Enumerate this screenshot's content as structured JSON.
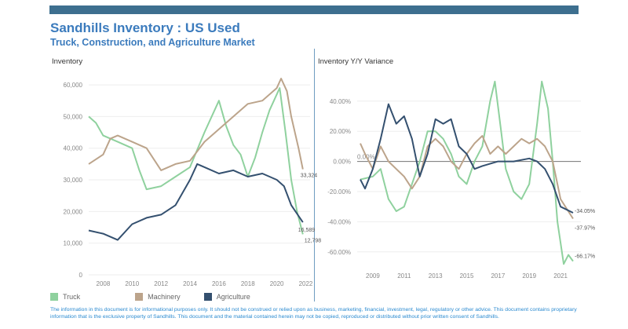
{
  "header": {
    "title": "Sandhills Inventory : US Used",
    "subtitle": "Truck, Construction, and Agriculture Market"
  },
  "colors": {
    "Truck": "#8fd19e",
    "Machinery": "#bca48b",
    "Agriculture": "#34506f",
    "bar": "#3d6f8f"
  },
  "legend": [
    {
      "name": "Truck"
    },
    {
      "name": "Machinery"
    },
    {
      "name": "Agriculture"
    }
  ],
  "disclaimer": "The information in this document is for informational purposes only.  It should not be construed or relied upon as business, marketing, financial, investment, legal, regulatory or other advice. This document contains proprietary information that is the exclusive property of Sandhills. This document and the material contained herein may not be copied, reproduced or distributed without prior written consent of Sandhills.",
  "chart_data": [
    {
      "type": "line",
      "title": "Inventory",
      "xlim": [
        2007,
        2022.3
      ],
      "ylim": [
        0,
        62000
      ],
      "xticks": [
        2008,
        2010,
        2012,
        2014,
        2016,
        2018,
        2020,
        2022
      ],
      "yticks": [
        0,
        10000,
        20000,
        30000,
        40000,
        50000,
        60000
      ],
      "ytick_labels": [
        "0",
        "10,000",
        "20,000",
        "30,000",
        "40,000",
        "50,000",
        "60,000"
      ],
      "series": [
        {
          "name": "Truck",
          "x": [
            2007,
            2007.5,
            2008,
            2009,
            2010,
            2010.5,
            2011,
            2012,
            2013,
            2014,
            2015,
            2016,
            2016.5,
            2017,
            2017.5,
            2018,
            2018.5,
            2019,
            2019.5,
            2020.2,
            2020.6,
            2021,
            2021.4,
            2021.8
          ],
          "y": [
            50000,
            48000,
            44000,
            42000,
            40000,
            33000,
            27000,
            28000,
            31000,
            34000,
            45000,
            55000,
            47000,
            41000,
            38000,
            31000,
            37000,
            45000,
            52000,
            59000,
            45000,
            30000,
            20000,
            12798
          ],
          "end_label": "12,798"
        },
        {
          "name": "Machinery",
          "x": [
            2007,
            2008,
            2008.5,
            2009,
            2010,
            2011,
            2012,
            2013,
            2014,
            2015,
            2016,
            2017,
            2018,
            2019,
            2020,
            2020.3,
            2020.7,
            2021,
            2021.5,
            2021.8
          ],
          "y": [
            35000,
            38000,
            43000,
            44000,
            42000,
            40000,
            33000,
            35000,
            36000,
            42000,
            46000,
            50000,
            54000,
            55000,
            59000,
            62000,
            58000,
            50000,
            40000,
            33324
          ],
          "end_label": "33,324"
        },
        {
          "name": "Agriculture",
          "x": [
            2007,
            2008,
            2009,
            2010,
            2011,
            2012,
            2013,
            2014,
            2014.5,
            2015,
            2016,
            2017,
            2018,
            2019,
            2020,
            2020.5,
            2021,
            2021.8
          ],
          "y": [
            14000,
            13000,
            11000,
            16000,
            18000,
            19000,
            22000,
            30000,
            35000,
            34000,
            32000,
            33000,
            31000,
            32000,
            30000,
            28000,
            22000,
            16589
          ],
          "end_label": "16,589"
        }
      ]
    },
    {
      "type": "line",
      "title": "Inventory Y/Y Variance",
      "xlim": [
        2008,
        2022.3
      ],
      "ylim": [
        -70,
        55
      ],
      "xticks": [
        2009,
        2011,
        2013,
        2015,
        2017,
        2019,
        2021
      ],
      "yticks": [
        -60,
        -40,
        -20,
        0,
        20,
        40
      ],
      "ytick_labels": [
        "-60.00%",
        "-40.00%",
        "-20.00%",
        "0.00%",
        "20.00%",
        "40.00%"
      ],
      "reference_line": {
        "value": 0,
        "label": "0.00%"
      },
      "series": [
        {
          "name": "Truck",
          "x": [
            2008.2,
            2009,
            2009.5,
            2010,
            2010.5,
            2011,
            2011.5,
            2012,
            2012.5,
            2013,
            2013.5,
            2014,
            2014.5,
            2015,
            2015.5,
            2016,
            2016.5,
            2016.8,
            2017.2,
            2017.5,
            2018,
            2018.5,
            2019,
            2019.5,
            2019.8,
            2020.2,
            2020.5,
            2020.8,
            2021.2,
            2021.5,
            2021.8
          ],
          "y": [
            -12,
            -10,
            -5,
            -25,
            -33,
            -30,
            -15,
            0,
            20,
            20,
            15,
            5,
            -10,
            -15,
            0,
            10,
            40,
            53,
            20,
            -5,
            -20,
            -25,
            -15,
            25,
            53,
            35,
            0,
            -40,
            -68,
            -62,
            -66.17
          ],
          "end_label": "-66.17%"
        },
        {
          "name": "Machinery",
          "x": [
            2008.2,
            2008.5,
            2009,
            2009.5,
            2010,
            2011,
            2011.5,
            2012,
            2012.5,
            2013,
            2013.5,
            2014,
            2014.5,
            2015,
            2015.5,
            2016,
            2016.5,
            2017,
            2017.5,
            2018,
            2018.5,
            2019,
            2019.5,
            2020,
            2020.5,
            2021,
            2021.8
          ],
          "y": [
            12,
            5,
            -5,
            10,
            0,
            -10,
            -18,
            -10,
            10,
            15,
            10,
            0,
            -5,
            5,
            12,
            17,
            5,
            10,
            5,
            10,
            15,
            12,
            15,
            10,
            0,
            -25,
            -37.97
          ],
          "end_label": "-37.97%"
        },
        {
          "name": "Agriculture",
          "x": [
            2008.2,
            2008.5,
            2009,
            2009.5,
            2010,
            2010.5,
            2011,
            2011.5,
            2012,
            2012.5,
            2013,
            2013.5,
            2014,
            2014.5,
            2015,
            2015.5,
            2016,
            2017,
            2018,
            2019,
            2019.5,
            2020,
            2020.5,
            2021,
            2021.8
          ],
          "y": [
            -12,
            -18,
            -5,
            15,
            38,
            25,
            30,
            15,
            -10,
            5,
            28,
            25,
            28,
            10,
            5,
            -5,
            -3,
            0,
            0,
            2,
            0,
            -5,
            -15,
            -30,
            -34.05
          ],
          "end_label": "-34.05%"
        }
      ]
    }
  ]
}
